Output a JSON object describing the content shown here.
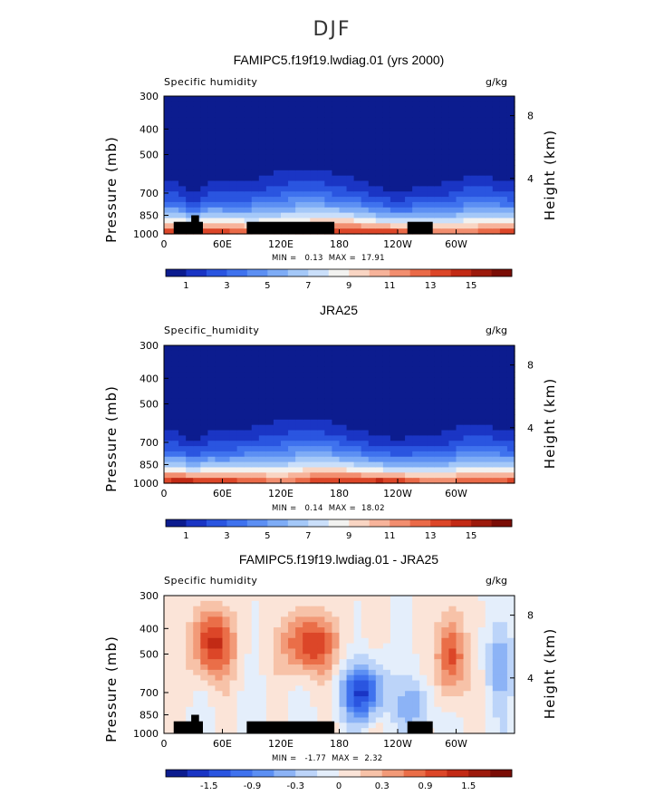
{
  "page_title": "DJF",
  "chart_data": [
    {
      "type": "heatmap",
      "title": "FAMIPC5.f19f19.lwdiag.01 (yrs 2000)",
      "field_label": "Specific humidity",
      "units": "g/kg",
      "ylabel": "Pressure (mb)",
      "ylabel_right": "Height (km)",
      "x_ticks": [
        "0",
        "60E",
        "120E",
        "180",
        "120W",
        "60W"
      ],
      "y_ticks": [
        "300",
        "400",
        "500",
        "700",
        "850",
        "1000"
      ],
      "y_ticks_right": [
        "8",
        "4"
      ],
      "ylim": [
        1000,
        300
      ],
      "min_label": "MIN =",
      "min_value": "0.13",
      "max_label": "MAX =",
      "max_value": "17.91",
      "colorbar_labels": [
        "1",
        "3",
        "5",
        "7",
        "9",
        "11",
        "13",
        "15"
      ],
      "colorbar_colors": [
        "#0c1c8f",
        "#1a35c4",
        "#2a55e0",
        "#3f72ee",
        "#5c8ff3",
        "#7eacf6",
        "#a4c8f8",
        "#cadffa",
        "#f2f2f0",
        "#f9d5c3",
        "#f7b39a",
        "#f28e6f",
        "#ea6a48",
        "#dc4628",
        "#c22a15",
        "#9c1a0c",
        "#7a0d06"
      ],
      "range": [
        0,
        18
      ],
      "terrain": true
    },
    {
      "type": "heatmap",
      "title": "JRA25",
      "field_label": "Specific_humidity",
      "units": "g/kg",
      "ylabel": "Pressure (mb)",
      "ylabel_right": "Height (km)",
      "x_ticks": [
        "0",
        "60E",
        "120E",
        "180",
        "120W",
        "60W"
      ],
      "y_ticks": [
        "300",
        "400",
        "500",
        "700",
        "850",
        "1000"
      ],
      "y_ticks_right": [
        "8",
        "4"
      ],
      "ylim": [
        1000,
        300
      ],
      "min_label": "MIN =",
      "min_value": "0.14",
      "max_label": "MAX =",
      "max_value": "18.02",
      "colorbar_labels": [
        "1",
        "3",
        "5",
        "7",
        "9",
        "11",
        "13",
        "15"
      ],
      "colorbar_colors": [
        "#0c1c8f",
        "#1a35c4",
        "#2a55e0",
        "#3f72ee",
        "#5c8ff3",
        "#7eacf6",
        "#a4c8f8",
        "#cadffa",
        "#f2f2f0",
        "#f9d5c3",
        "#f7b39a",
        "#f28e6f",
        "#ea6a48",
        "#dc4628",
        "#c22a15",
        "#9c1a0c",
        "#7a0d06"
      ],
      "range": [
        0,
        18
      ],
      "terrain": false
    },
    {
      "type": "heatmap",
      "title": "FAMIPC5.f19f19.lwdiag.01 - JRA25",
      "field_label": "Specific humidity",
      "units": "g/kg",
      "ylabel": "Pressure (mb)",
      "ylabel_right": "Height (km)",
      "x_ticks": [
        "0",
        "60E",
        "120E",
        "180",
        "120W",
        "60W"
      ],
      "y_ticks": [
        "300",
        "400",
        "500",
        "700",
        "850",
        "1000"
      ],
      "y_ticks_right": [
        "8",
        "4"
      ],
      "ylim": [
        1000,
        300
      ],
      "min_label": "MIN =",
      "min_value": "-1.77",
      "max_label": "MAX =",
      "max_value": "2.32",
      "colorbar_labels": [
        "-1.5",
        "-0.9",
        "-0.3",
        "0",
        "0.3",
        "0.9",
        "1.5"
      ],
      "colorbar_colors": [
        "#0c1c8f",
        "#1a35c4",
        "#2a55e0",
        "#3f72ee",
        "#5c8ff3",
        "#8cb3f6",
        "#bcd4f9",
        "#e4eefb",
        "#fbe4d8",
        "#f7c2a8",
        "#f29a78",
        "#ea6e48",
        "#dc4628",
        "#c22a15",
        "#9c1a0c",
        "#7a0d06"
      ],
      "range": [
        -2.1,
        2.1
      ],
      "terrain": true
    }
  ]
}
